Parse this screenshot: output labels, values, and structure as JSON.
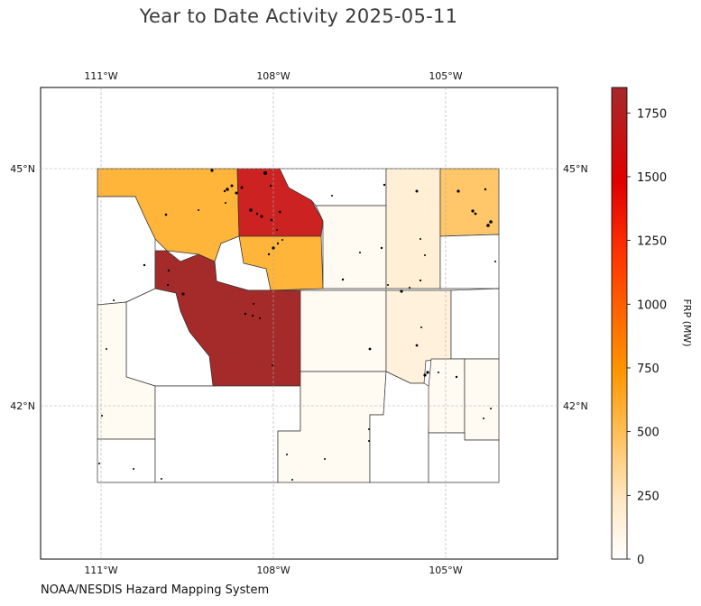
{
  "title": "Year to Date Activity 2025-05-11",
  "footer": "NOAA/NESDIS Hazard Mapping System",
  "axes": {
    "lon_ticks": [
      "111°W",
      "108°W",
      "105°W"
    ],
    "lat_ticks": [
      "45°N",
      "42°N"
    ]
  },
  "colorbar": {
    "label": "FRP (MW)",
    "min": 0,
    "max": 1850,
    "ticks": [
      "0",
      "250",
      "500",
      "750",
      "1000",
      "1250",
      "1500",
      "1750"
    ],
    "colors": [
      "#ffffff",
      "#ffe7c2",
      "#ffbe55",
      "#ff9500",
      "#ff3300",
      "#e00000",
      "#a52a2a"
    ]
  },
  "map": {
    "state": "Wyoming",
    "fill_colors": {
      "high": "#a52a2a",
      "elevated": "#cc2222",
      "moderate": "#ffb43a",
      "low": "#ffefd5",
      "very_low": "#fff9ef",
      "none": "#ffffff"
    },
    "grid": true
  }
}
